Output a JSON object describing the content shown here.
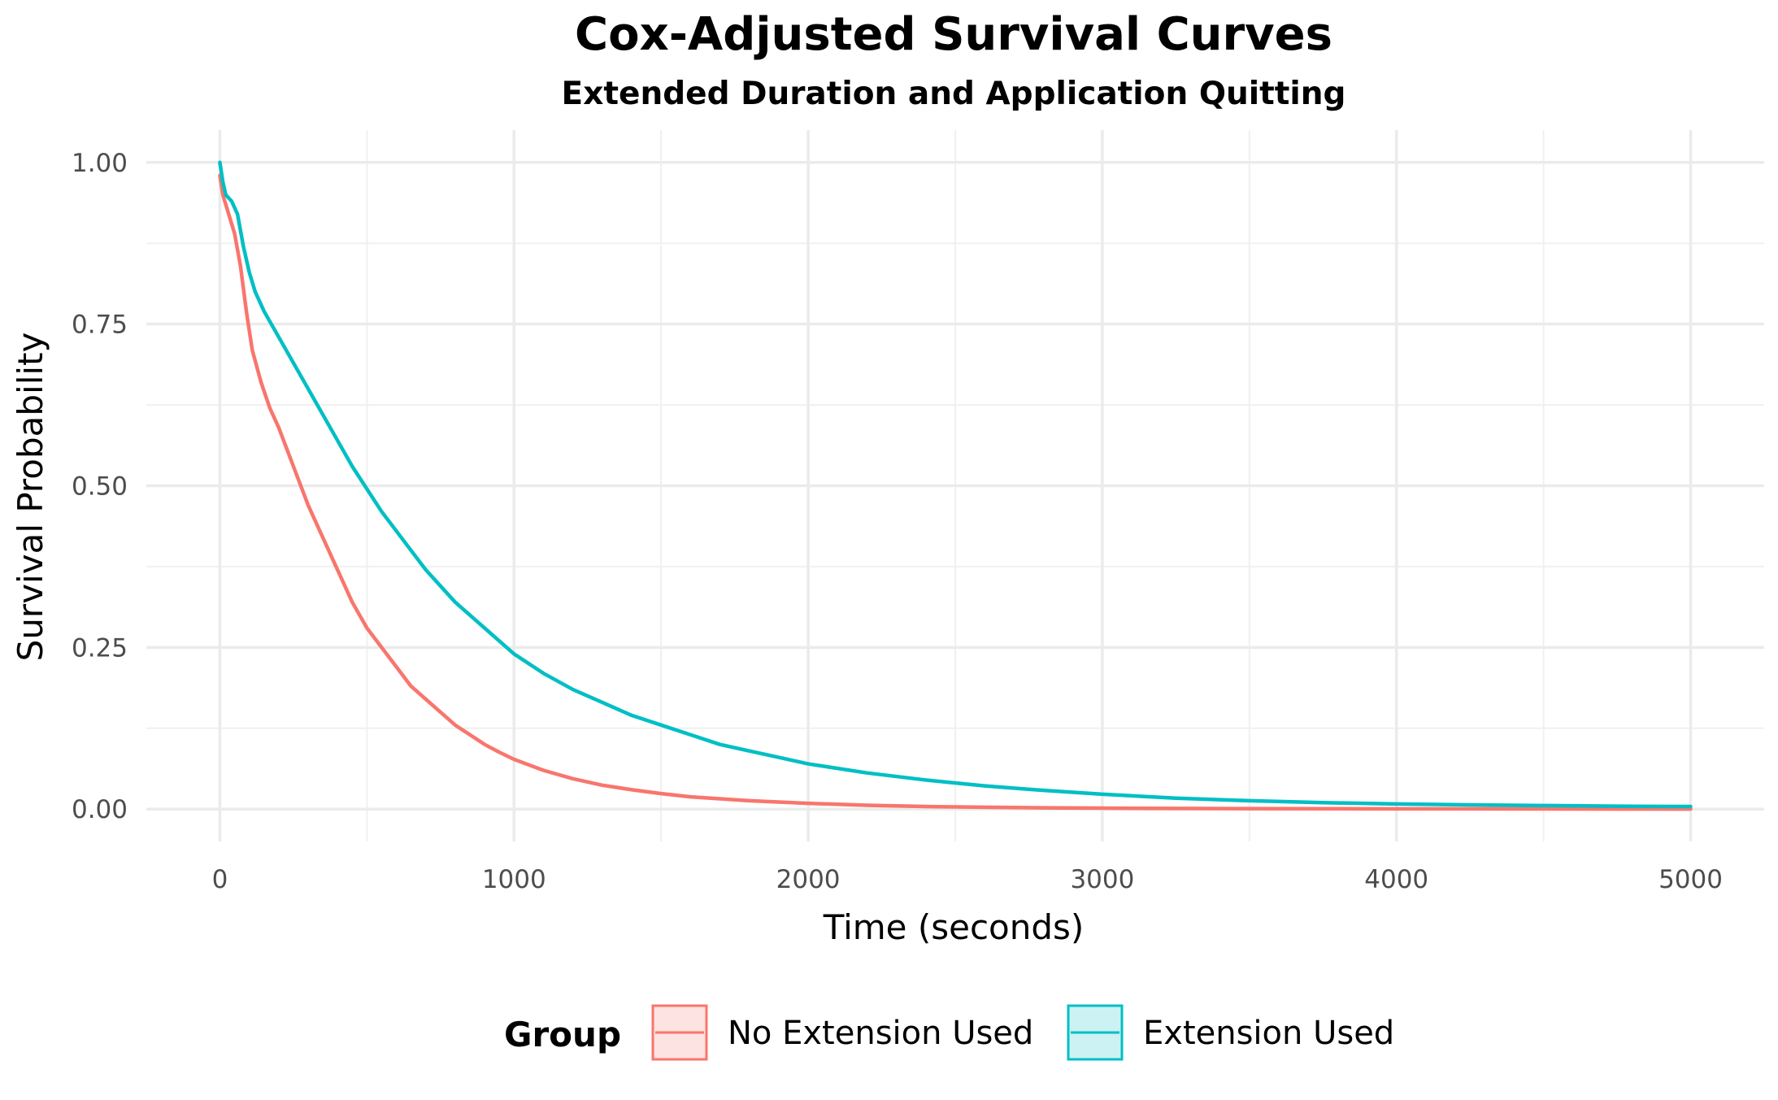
{
  "chart_data": {
    "type": "line",
    "title": "Cox-Adjusted Survival Curves",
    "subtitle": "Extended Duration and Application Quitting",
    "xlabel": "Time (seconds)",
    "ylabel": "Survival Probability",
    "xlim": [
      -250,
      5250
    ],
    "ylim": [
      -0.05,
      1.05
    ],
    "x_ticks": [
      0,
      1000,
      2000,
      3000,
      4000,
      5000
    ],
    "x_tick_labels": [
      "0",
      "1000",
      "2000",
      "3000",
      "4000",
      "5000"
    ],
    "y_ticks": [
      0,
      0.25,
      0.5,
      0.75,
      1.0
    ],
    "y_tick_labels": [
      "0.00",
      "0.25",
      "0.50",
      "0.75",
      "1.00"
    ],
    "grid": true,
    "legend": {
      "title": "Group",
      "position": "bottom",
      "entries": [
        "No Extension Used",
        "Extension Used"
      ]
    },
    "series": [
      {
        "name": "No Extension Used",
        "color": "#F8766D",
        "fill": "#FDE3E1",
        "x": [
          0,
          10,
          30,
          50,
          70,
          90,
          110,
          140,
          170,
          200,
          250,
          300,
          350,
          400,
          450,
          500,
          550,
          600,
          650,
          700,
          750,
          800,
          850,
          900,
          950,
          1000,
          1100,
          1200,
          1300,
          1400,
          1500,
          1600,
          1700,
          1800,
          1900,
          2000,
          2200,
          2400,
          2600,
          2800,
          3000,
          3250,
          3500,
          3750,
          4000,
          4250,
          4500,
          4750,
          5000
        ],
        "y": [
          0.98,
          0.95,
          0.92,
          0.89,
          0.84,
          0.77,
          0.71,
          0.66,
          0.62,
          0.59,
          0.53,
          0.47,
          0.42,
          0.37,
          0.32,
          0.28,
          0.25,
          0.22,
          0.19,
          0.17,
          0.15,
          0.13,
          0.115,
          0.1,
          0.088,
          0.077,
          0.06,
          0.047,
          0.037,
          0.03,
          0.024,
          0.019,
          0.016,
          0.013,
          0.011,
          0.009,
          0.006,
          0.004,
          0.003,
          0.002,
          0.0015,
          0.001,
          0.0008,
          0.0006,
          0.0005,
          0.0004,
          0.0003,
          0.0002,
          0.0002
        ]
      },
      {
        "name": "Extension Used",
        "color": "#00BFC4",
        "fill": "#CCF2F3",
        "x": [
          0,
          10,
          20,
          40,
          60,
          80,
          100,
          120,
          150,
          200,
          250,
          300,
          350,
          400,
          450,
          500,
          550,
          600,
          650,
          700,
          750,
          800,
          850,
          900,
          950,
          1000,
          1100,
          1200,
          1300,
          1400,
          1500,
          1600,
          1700,
          1800,
          1900,
          2000,
          2200,
          2400,
          2600,
          2800,
          3000,
          3250,
          3500,
          3750,
          4000,
          4250,
          4500,
          4750,
          5000
        ],
        "y": [
          1.0,
          0.97,
          0.95,
          0.94,
          0.92,
          0.87,
          0.83,
          0.8,
          0.77,
          0.73,
          0.69,
          0.65,
          0.61,
          0.57,
          0.53,
          0.495,
          0.46,
          0.43,
          0.4,
          0.37,
          0.345,
          0.32,
          0.3,
          0.28,
          0.26,
          0.24,
          0.21,
          0.185,
          0.165,
          0.145,
          0.13,
          0.115,
          0.1,
          0.09,
          0.08,
          0.07,
          0.056,
          0.045,
          0.036,
          0.029,
          0.023,
          0.017,
          0.013,
          0.01,
          0.008,
          0.0065,
          0.0055,
          0.0045,
          0.004
        ]
      }
    ]
  }
}
